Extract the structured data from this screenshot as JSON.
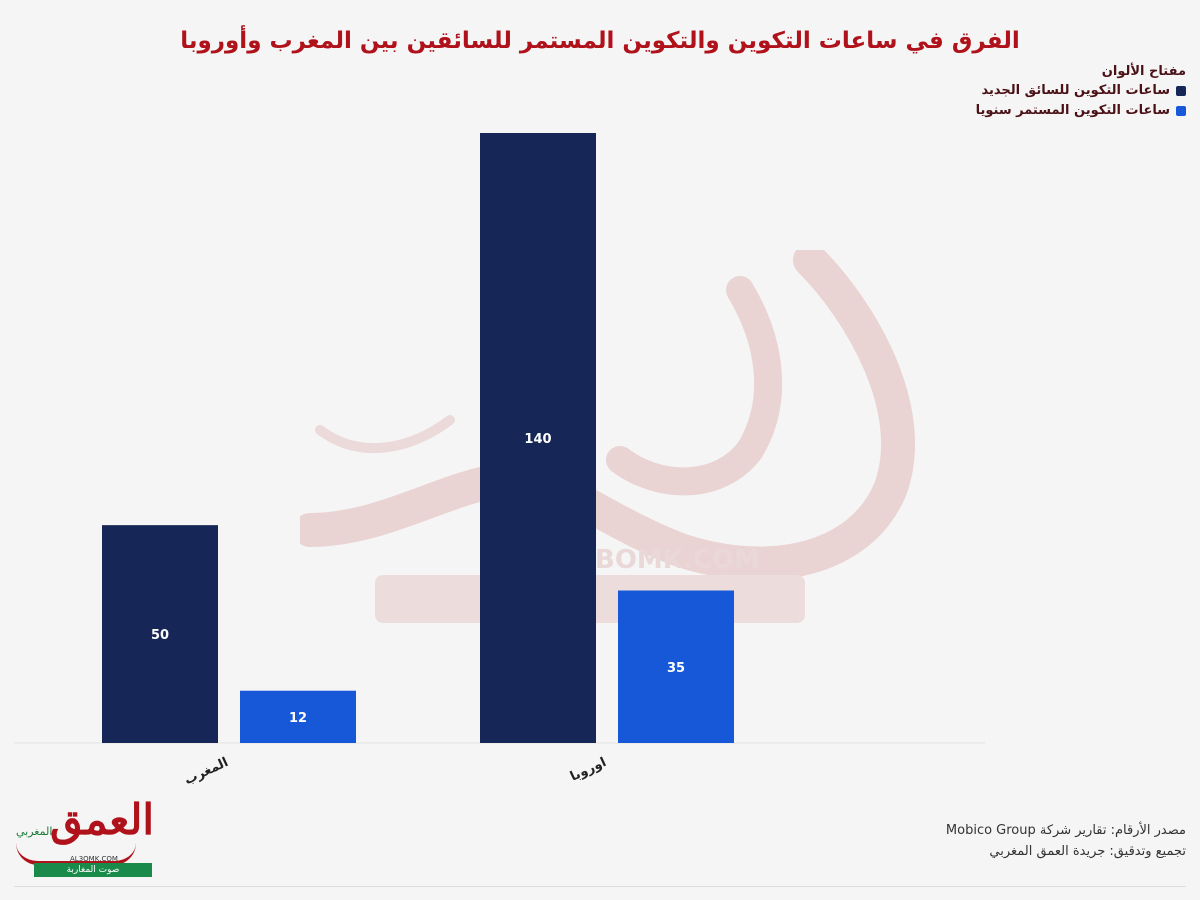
{
  "title": "الفرق في ساعات التكوين والتكوين المستمر للسائقين بين المغرب وأوروبا",
  "legend": {
    "title": "مفتاح الألوان",
    "items": [
      {
        "label": "ساعات التكوين للسائق الجديد",
        "color": "#162757"
      },
      {
        "label": "ساعات التكوين المستمر سنويا",
        "color": "#1658d8"
      }
    ]
  },
  "chart_data": {
    "type": "bar",
    "categories": [
      "المغرب",
      "اوروبا"
    ],
    "series": [
      {
        "name": "ساعات التكوين للسائق الجديد",
        "values": [
          50,
          140
        ],
        "color": "#162757"
      },
      {
        "name": "ساعات التكوين المستمر سنويا",
        "values": [
          12,
          35
        ],
        "color": "#1658d8"
      }
    ],
    "ylim": [
      0,
      140
    ],
    "legend_position": "top-right",
    "grid": false
  },
  "watermark": {
    "text": "BOMK.COM"
  },
  "footer": {
    "source": "مصدر الأرقام: تقارير شركة Mobico Group",
    "credit": "تجميع وتدقيق: جريدة العمق المغربي"
  },
  "logo": {
    "main": "العمق",
    "sub": "المغربي",
    "url": "AL3OMK.COM",
    "strip": "صوت المغاربة"
  }
}
